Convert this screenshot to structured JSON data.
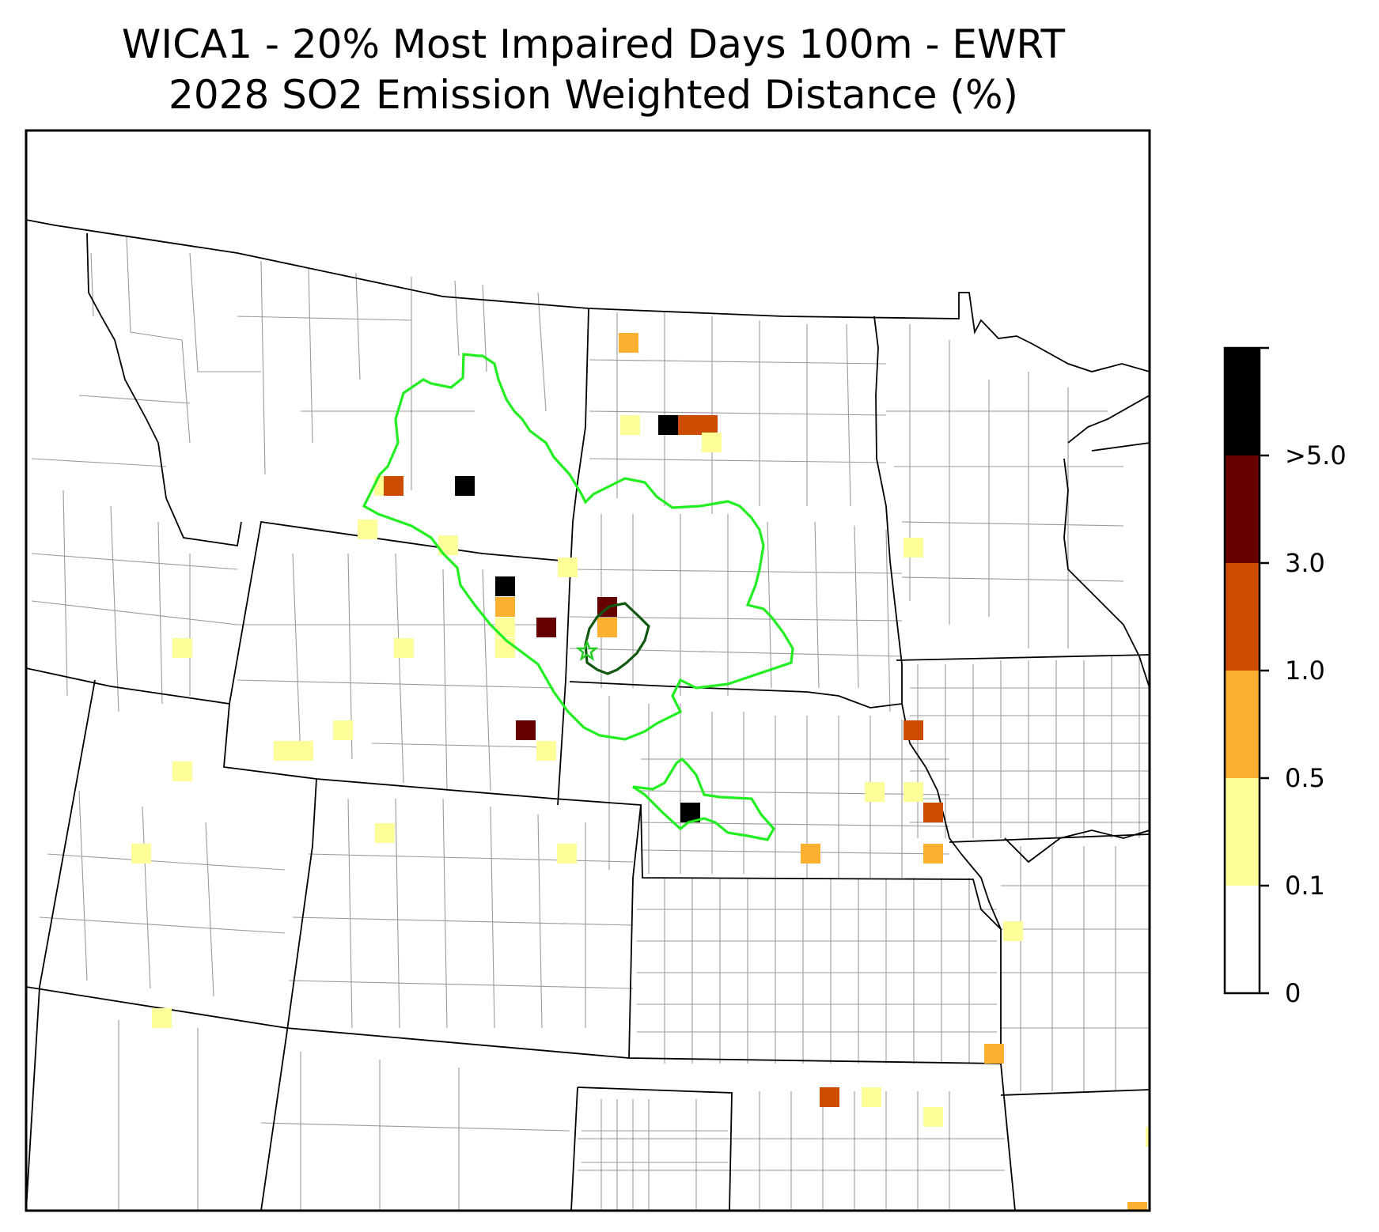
{
  "title": {
    "line1": "WICA1 - 20% Most Impaired Days 100m - EWRT",
    "line2": "2028 SO2 Emission Weighted Distance (%)"
  },
  "colorbar": {
    "labels": [
      "0",
      "0.1",
      "0.5",
      "1.0",
      "3.0",
      ">5.0"
    ],
    "bins": [
      {
        "range": "0-0.1",
        "color": "#ffffff"
      },
      {
        "range": "0.1-0.5",
        "color": "#ffff99"
      },
      {
        "range": "0.5-1.0",
        "color": "#fcb030"
      },
      {
        "range": "1.0-3.0",
        "color": "#cc4c02"
      },
      {
        "range": "3.0-5.0",
        "color": "#660000"
      },
      {
        "range": ">5.0",
        "color": "#000000"
      }
    ]
  },
  "colors": {
    "contour_outer": "#22ee22",
    "contour_inner": "#105810",
    "state_borders": "#000000",
    "county_borders": "#9a9a9a"
  },
  "site_marker": {
    "name": "WICA1",
    "icon": "star-icon"
  }
}
